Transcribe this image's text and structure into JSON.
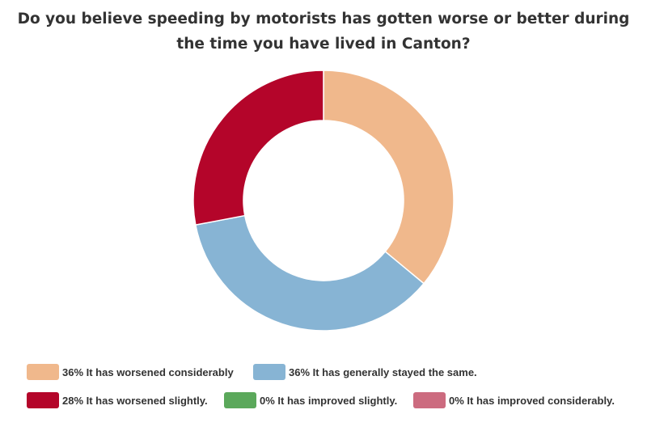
{
  "chart_data": {
    "type": "pie",
    "variant": "donut",
    "title_lines": [
      "Do you believe speeding by motorists has gotten worse or better during",
      "the time you have lived in Canton?"
    ],
    "slices": [
      {
        "label": "It has worsened considerably",
        "value": 36,
        "legend_text": "36% It has worsened considerably",
        "color": "#F0B88C"
      },
      {
        "label": "It has generally stayed the same.",
        "value": 36,
        "legend_text": "36% It has generally stayed the same.",
        "color": "#87B4D4"
      },
      {
        "label": "It has worsened slightly.",
        "value": 28,
        "legend_text": "28% It has worsened slightly.",
        "color": "#B4052A"
      },
      {
        "label": "It has improved slightly.",
        "value": 0,
        "legend_text": "0% It has improved slightly.",
        "color": "#5BA85B"
      },
      {
        "label": "It has improved considerably.",
        "value": 0,
        "legend_text": "0% It has improved considerably.",
        "color": "#CC6B7F"
      }
    ],
    "legend_position": "bottom"
  }
}
